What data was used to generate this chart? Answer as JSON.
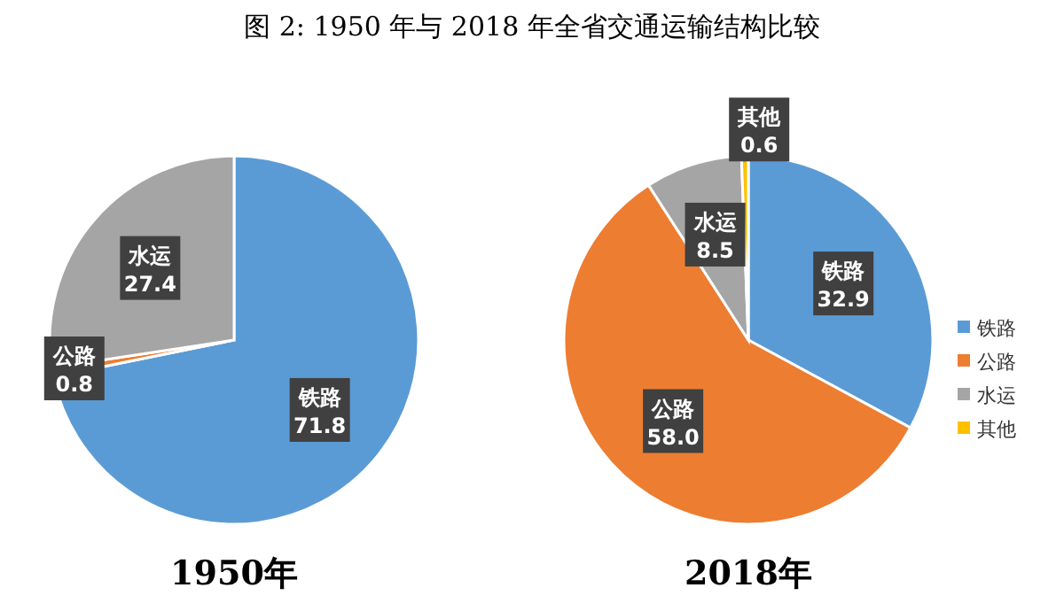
{
  "chart_data": [
    {
      "type": "pie",
      "title": "图 2: 1950 年与 2018 年全省交通运输结构比较",
      "subtitle": "1950年",
      "categories": [
        "铁路",
        "公路",
        "水运"
      ],
      "values": [
        71.8,
        0.8,
        27.4
      ],
      "colors": [
        "#5b9bd5",
        "#ed7d31",
        "#a5a5a5"
      ],
      "value_labels": [
        "71.8",
        "0.8",
        "27.4"
      ]
    },
    {
      "type": "pie",
      "subtitle": "2018年",
      "categories": [
        "铁路",
        "公路",
        "水运",
        "其他"
      ],
      "values": [
        32.9,
        58.0,
        8.5,
        0.6
      ],
      "colors": [
        "#5b9bd5",
        "#ed7d31",
        "#a5a5a5",
        "#ffc000"
      ],
      "value_labels": [
        "32.9",
        "58.0",
        "8.5",
        "0.6"
      ],
      "legend": "right"
    }
  ]
}
